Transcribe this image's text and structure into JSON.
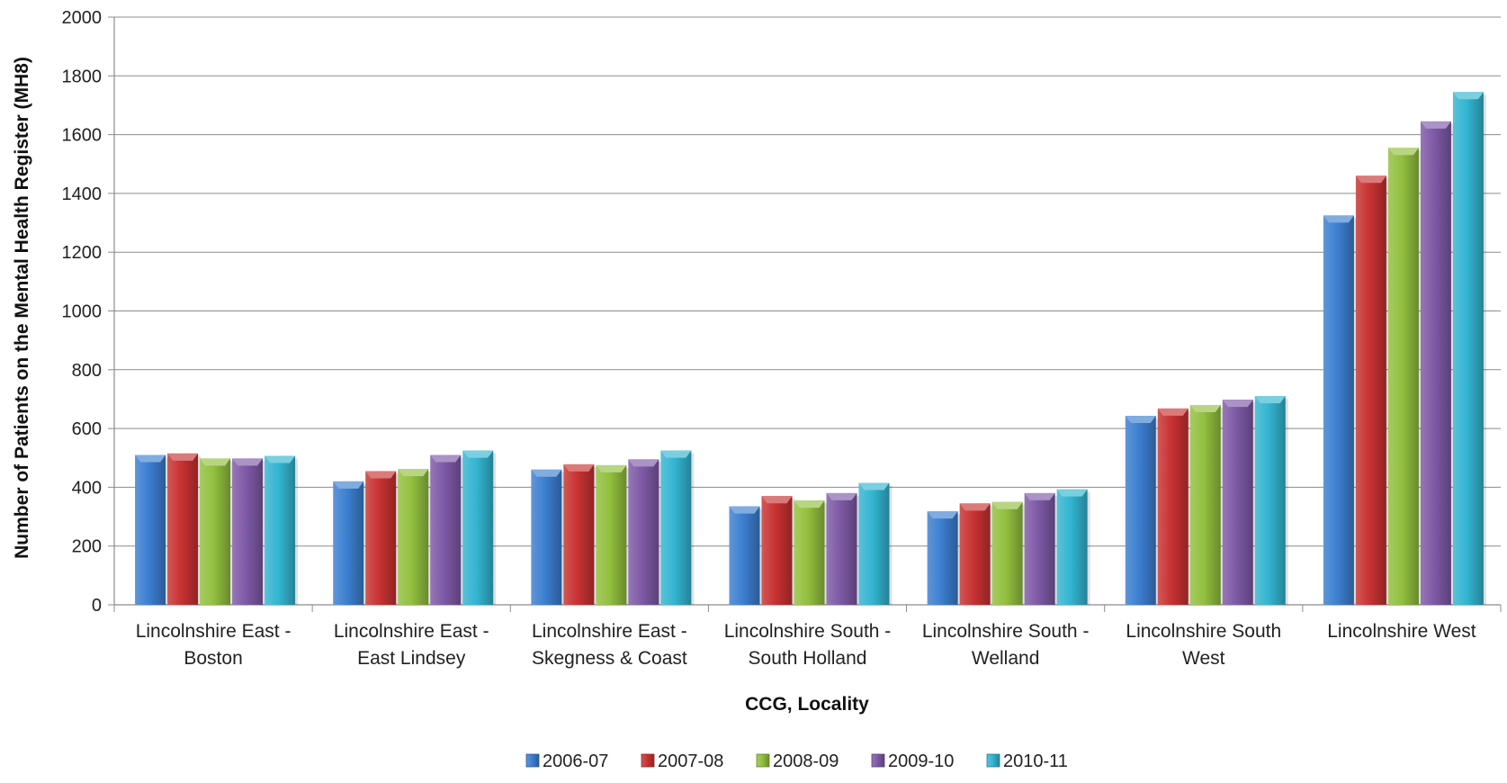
{
  "chart_data": {
    "type": "bar",
    "xlabel": "CCG, Locality",
    "ylabel": "Number of Patients on the Mental Health Register (MH8)",
    "ylim": [
      0,
      2000
    ],
    "yticks": [
      0,
      200,
      400,
      600,
      800,
      1000,
      1200,
      1400,
      1600,
      1800,
      2000
    ],
    "grid": true,
    "legend_position": "bottom",
    "categories": [
      [
        "Lincolnshire East -",
        "Boston"
      ],
      [
        "Lincolnshire East -",
        "East Lindsey"
      ],
      [
        "Lincolnshire East -",
        "Skegness & Coast"
      ],
      [
        "Lincolnshire South -",
        "South Holland"
      ],
      [
        "Lincolnshire South -",
        "Welland"
      ],
      [
        "Lincolnshire South",
        "West"
      ],
      [
        "Lincolnshire West"
      ]
    ],
    "series": [
      {
        "name": "2006-07",
        "color": "#3c7fd0",
        "values": [
          510,
          420,
          460,
          335,
          318,
          643,
          1325
        ]
      },
      {
        "name": "2007-08",
        "color": "#c83232",
        "values": [
          515,
          455,
          478,
          370,
          345,
          668,
          1460
        ]
      },
      {
        "name": "2008-09",
        "color": "#92c03e",
        "values": [
          498,
          462,
          475,
          355,
          350,
          680,
          1555
        ]
      },
      {
        "name": "2009-10",
        "color": "#7e59a6",
        "values": [
          498,
          510,
          495,
          380,
          380,
          698,
          1645
        ]
      },
      {
        "name": "2010-11",
        "color": "#33b5d1",
        "values": [
          507,
          525,
          525,
          415,
          393,
          710,
          1745
        ]
      }
    ]
  }
}
